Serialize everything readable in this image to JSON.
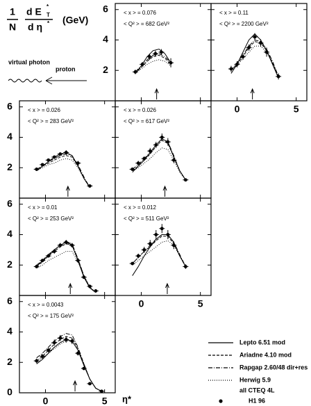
{
  "ylabel": {
    "num1": "1",
    "den1": "N",
    "num2": "d E",
    "sub": "T",
    "sup": "*",
    "den2": "d η",
    "sup2": "*",
    "unit": "(GeV)"
  },
  "diagram": {
    "left": "virtual photon",
    "right": "proton"
  },
  "xlabel": "η*",
  "xlim": [
    -2.2,
    5.9
  ],
  "xticks": [
    0,
    5
  ],
  "ylim": [
    0,
    6.4
  ],
  "yticks": [
    0,
    2,
    4,
    6
  ],
  "legend": [
    {
      "name": "Lepto 6.51 mod",
      "dash": "none"
    },
    {
      "name": "Ariadne 4.10 mod",
      "dash": "4,2"
    },
    {
      "name": "Rapgap 2.60/48 dir+res",
      "dash": "6,2,1,2"
    },
    {
      "name": "Herwig 5.9",
      "dash": "1,2"
    }
  ],
  "legend_note": "all CTEQ 4L",
  "points_legend": "H1 96",
  "chart_data": [
    {
      "type": "line",
      "annotations": [
        "< x > = 0.076",
        "< Q² > = 682 GeV²"
      ],
      "arrow": 1.3,
      "x": [
        -0.5,
        0,
        0.5,
        1,
        1.5,
        2,
        2.5
      ],
      "series": [
        {
          "values": [
            1.8,
            2.3,
            2.9,
            3.3,
            3.4,
            3.1,
            2.5
          ]
        },
        {
          "values": [
            1.8,
            2.2,
            2.6,
            2.9,
            3.0,
            2.8,
            2.4
          ]
        },
        {
          "values": [
            1.9,
            2.3,
            2.7,
            3.0,
            3.1,
            2.9,
            2.5
          ]
        },
        {
          "values": [
            1.8,
            2.1,
            2.4,
            2.6,
            2.7,
            2.6,
            2.3
          ]
        }
      ],
      "points": {
        "x": [
          -0.5,
          0.1,
          0.7,
          1.2,
          1.7,
          2.5
        ],
        "values": [
          1.9,
          2.4,
          2.9,
          3.1,
          3.2,
          2.5
        ],
        "errors": [
          0.15,
          0.15,
          0.2,
          0.2,
          0.2,
          0.3
        ]
      }
    },
    {
      "type": "line",
      "annotations": [
        "< x > = 0.11",
        "< Q² > = 2200 GeV²"
      ],
      "arrow": 1.3,
      "x": [
        -0.5,
        0,
        0.5,
        1,
        1.5,
        2,
        2.5,
        3,
        3.5
      ],
      "series": [
        {
          "values": [
            1.8,
            2.4,
            3.2,
            4.0,
            4.4,
            4.0,
            3.3,
            2.4,
            1.5
          ]
        },
        {
          "values": [
            2.0,
            2.4,
            2.9,
            3.5,
            3.9,
            3.8,
            3.3,
            2.5,
            1.6
          ]
        },
        {
          "values": [
            2.0,
            2.5,
            3.0,
            3.6,
            4.0,
            3.9,
            3.4,
            2.6,
            1.6
          ]
        },
        {
          "values": [
            2.0,
            2.3,
            2.8,
            3.2,
            3.6,
            3.6,
            3.2,
            2.5,
            1.6
          ]
        }
      ],
      "points": {
        "x": [
          -0.5,
          0,
          0.5,
          1,
          1.5,
          2,
          2.5,
          3.5
        ],
        "values": [
          2.1,
          2.4,
          2.9,
          3.5,
          4.2,
          3.8,
          3.2,
          1.6
        ],
        "errors": [
          0.2,
          0.2,
          0.2,
          0.2,
          0.25,
          0.25,
          0.3,
          0.2
        ]
      }
    },
    {
      "type": "line",
      "annotations": [
        "< x > = 0.026",
        "< Q² > = 283 GeV²"
      ],
      "arrow": 1.9,
      "x": [
        -0.75,
        -0.25,
        0.25,
        0.75,
        1.25,
        1.75,
        2.25,
        2.75,
        3.25,
        3.75
      ],
      "series": [
        {
          "values": [
            1.8,
            2.1,
            2.4,
            2.7,
            2.9,
            3.0,
            2.8,
            2.1,
            1.3,
            0.7
          ]
        },
        {
          "values": [
            1.8,
            2.1,
            2.3,
            2.5,
            2.7,
            2.8,
            2.7,
            2.1,
            1.3,
            0.7
          ]
        },
        {
          "values": [
            1.9,
            2.1,
            2.4,
            2.6,
            2.8,
            2.9,
            2.8,
            2.2,
            1.4,
            0.7
          ]
        },
        {
          "values": [
            1.8,
            2.0,
            2.2,
            2.3,
            2.5,
            2.6,
            2.5,
            2.0,
            1.3,
            0.7
          ]
        }
      ],
      "points": {
        "x": [
          -0.75,
          -0.25,
          0.25,
          0.75,
          1.25,
          1.75,
          2.75,
          3.75
        ],
        "values": [
          1.9,
          2.2,
          2.5,
          2.7,
          2.9,
          3.0,
          2.3,
          0.8
        ],
        "errors": [
          0.1,
          0.1,
          0.1,
          0.1,
          0.1,
          0.15,
          0.15,
          0.1
        ]
      }
    },
    {
      "type": "line",
      "annotations": [
        "< x > = 0.026",
        "< Q² > = 617 GeV²"
      ],
      "arrow": 2.0,
      "x": [
        -0.75,
        -0.25,
        0.25,
        0.75,
        1.25,
        1.75,
        2.25,
        2.75,
        3.25,
        3.75
      ],
      "series": [
        {
          "values": [
            1.7,
            2.1,
            2.5,
            3.0,
            3.5,
            3.9,
            3.7,
            2.7,
            1.8,
            1.2
          ]
        },
        {
          "values": [
            1.8,
            2.1,
            2.5,
            2.9,
            3.4,
            3.8,
            3.6,
            2.7,
            1.8,
            1.2
          ]
        },
        {
          "values": [
            1.9,
            2.2,
            2.6,
            3.0,
            3.5,
            3.9,
            3.7,
            2.8,
            1.8,
            1.2
          ]
        },
        {
          "values": [
            1.8,
            2.0,
            2.3,
            2.6,
            3.0,
            3.3,
            3.2,
            2.5,
            1.7,
            1.2
          ]
        }
      ],
      "points": {
        "x": [
          -0.75,
          -0.25,
          0.25,
          0.75,
          1.25,
          1.75,
          2.25,
          2.75,
          3.75
        ],
        "values": [
          1.9,
          2.3,
          2.6,
          3.1,
          3.5,
          4.0,
          3.7,
          2.5,
          1.2
        ],
        "errors": [
          0.1,
          0.15,
          0.15,
          0.2,
          0.2,
          0.25,
          0.25,
          0.2,
          0.1
        ]
      }
    },
    {
      "type": "line",
      "annotations": [
        "< x > = 0.01",
        "< Q² > = 253 GeV²"
      ],
      "arrow": 2.1,
      "x": [
        -0.75,
        -0.25,
        0.25,
        0.75,
        1.25,
        1.75,
        2.25,
        2.75,
        3.25,
        3.75,
        4.25
      ],
      "series": [
        {
          "values": [
            1.9,
            2.3,
            2.6,
            3.0,
            3.3,
            3.5,
            3.3,
            2.3,
            1.2,
            0.5,
            0.2
          ]
        },
        {
          "values": [
            1.9,
            2.2,
            2.6,
            2.9,
            3.2,
            3.4,
            3.3,
            2.4,
            1.3,
            0.5,
            0.2
          ]
        },
        {
          "values": [
            2.0,
            2.3,
            2.7,
            3.0,
            3.3,
            3.5,
            3.4,
            2.4,
            1.3,
            0.5,
            0.2
          ]
        },
        {
          "values": [
            1.8,
            2.0,
            2.3,
            2.5,
            2.7,
            2.9,
            2.9,
            2.2,
            1.3,
            0.6,
            0.2
          ]
        }
      ],
      "points": {
        "x": [
          -0.75,
          -0.25,
          0.25,
          0.75,
          1.25,
          1.75,
          2.25,
          2.75,
          3.25,
          3.75,
          4.25
        ],
        "values": [
          1.9,
          2.3,
          2.6,
          2.9,
          3.3,
          3.5,
          3.3,
          2.3,
          1.2,
          0.6,
          0.3
        ],
        "errors": [
          0.1,
          0.1,
          0.1,
          0.15,
          0.15,
          0.15,
          0.15,
          0.15,
          0.1,
          0.1,
          0.05
        ]
      }
    },
    {
      "type": "line",
      "annotations": [
        "< x > = 0.012",
        "< Q² > = 511 GeV²"
      ],
      "arrow": 2.2,
      "x": [
        -0.75,
        -0.25,
        0.25,
        0.75,
        1.25,
        1.75,
        2.25,
        2.75,
        3.25,
        3.75
      ],
      "series": [
        {
          "values": [
            1.3,
            1.9,
            2.6,
            3.2,
            3.7,
            4.0,
            4.0,
            3.5,
            2.6,
            1.9
          ]
        },
        {
          "values": [
            2.1,
            2.5,
            2.9,
            3.2,
            3.6,
            3.9,
            3.9,
            3.4,
            2.6,
            1.9
          ]
        },
        {
          "values": [
            2.1,
            2.5,
            2.9,
            3.3,
            3.7,
            4.0,
            4.0,
            3.5,
            2.7,
            1.9
          ]
        },
        {
          "values": [
            2.0,
            2.3,
            2.6,
            2.9,
            3.2,
            3.5,
            3.6,
            3.3,
            2.6,
            1.9
          ]
        }
      ],
      "points": {
        "x": [
          -0.75,
          -0.25,
          0.25,
          0.75,
          1.25,
          1.75,
          2.25,
          2.75,
          3.75
        ],
        "values": [
          2.1,
          2.6,
          3.0,
          3.4,
          4.0,
          4.4,
          4.0,
          3.3,
          1.9
        ],
        "errors": [
          0.1,
          0.15,
          0.2,
          0.25,
          0.3,
          0.3,
          0.3,
          0.25,
          0.15
        ]
      }
    },
    {
      "type": "line",
      "annotations": [
        "< x > = 0.0043",
        "< Q² > = 175 GeV²"
      ],
      "arrow": 2.5,
      "x": [
        -0.75,
        -0.25,
        0.25,
        0.75,
        1.25,
        1.75,
        2.25,
        2.75,
        3.25,
        3.75,
        4.25,
        4.75
      ],
      "series": [
        {
          "values": [
            1.9,
            2.2,
            2.6,
            3.0,
            3.3,
            3.5,
            3.4,
            2.8,
            1.8,
            0.9,
            0.3,
            0.1
          ]
        },
        {
          "values": [
            2.1,
            2.4,
            2.8,
            3.2,
            3.5,
            3.7,
            3.6,
            2.9,
            1.9,
            0.9,
            0.3,
            0.1
          ]
        },
        {
          "values": [
            2.3,
            2.6,
            3.0,
            3.4,
            3.7,
            3.9,
            3.8,
            3.0,
            1.9,
            0.9,
            0.3,
            0.1
          ]
        },
        {
          "values": [
            2.0,
            2.3,
            2.6,
            2.9,
            3.2,
            3.4,
            3.4,
            2.8,
            1.8,
            0.9,
            0.3,
            0.1
          ]
        }
      ],
      "points": {
        "x": [
          -0.75,
          -0.25,
          0.25,
          0.75,
          1.25,
          1.75,
          2.25,
          2.75,
          3.25,
          3.75,
          4.75
        ],
        "values": [
          2.1,
          2.4,
          2.8,
          3.3,
          3.6,
          3.5,
          3.4,
          2.6,
          1.6,
          0.6,
          0.1
        ],
        "errors": [
          0.15,
          0.15,
          0.15,
          0.2,
          0.2,
          0.2,
          0.2,
          0.15,
          0.1,
          0.1,
          0.05
        ]
      }
    }
  ]
}
